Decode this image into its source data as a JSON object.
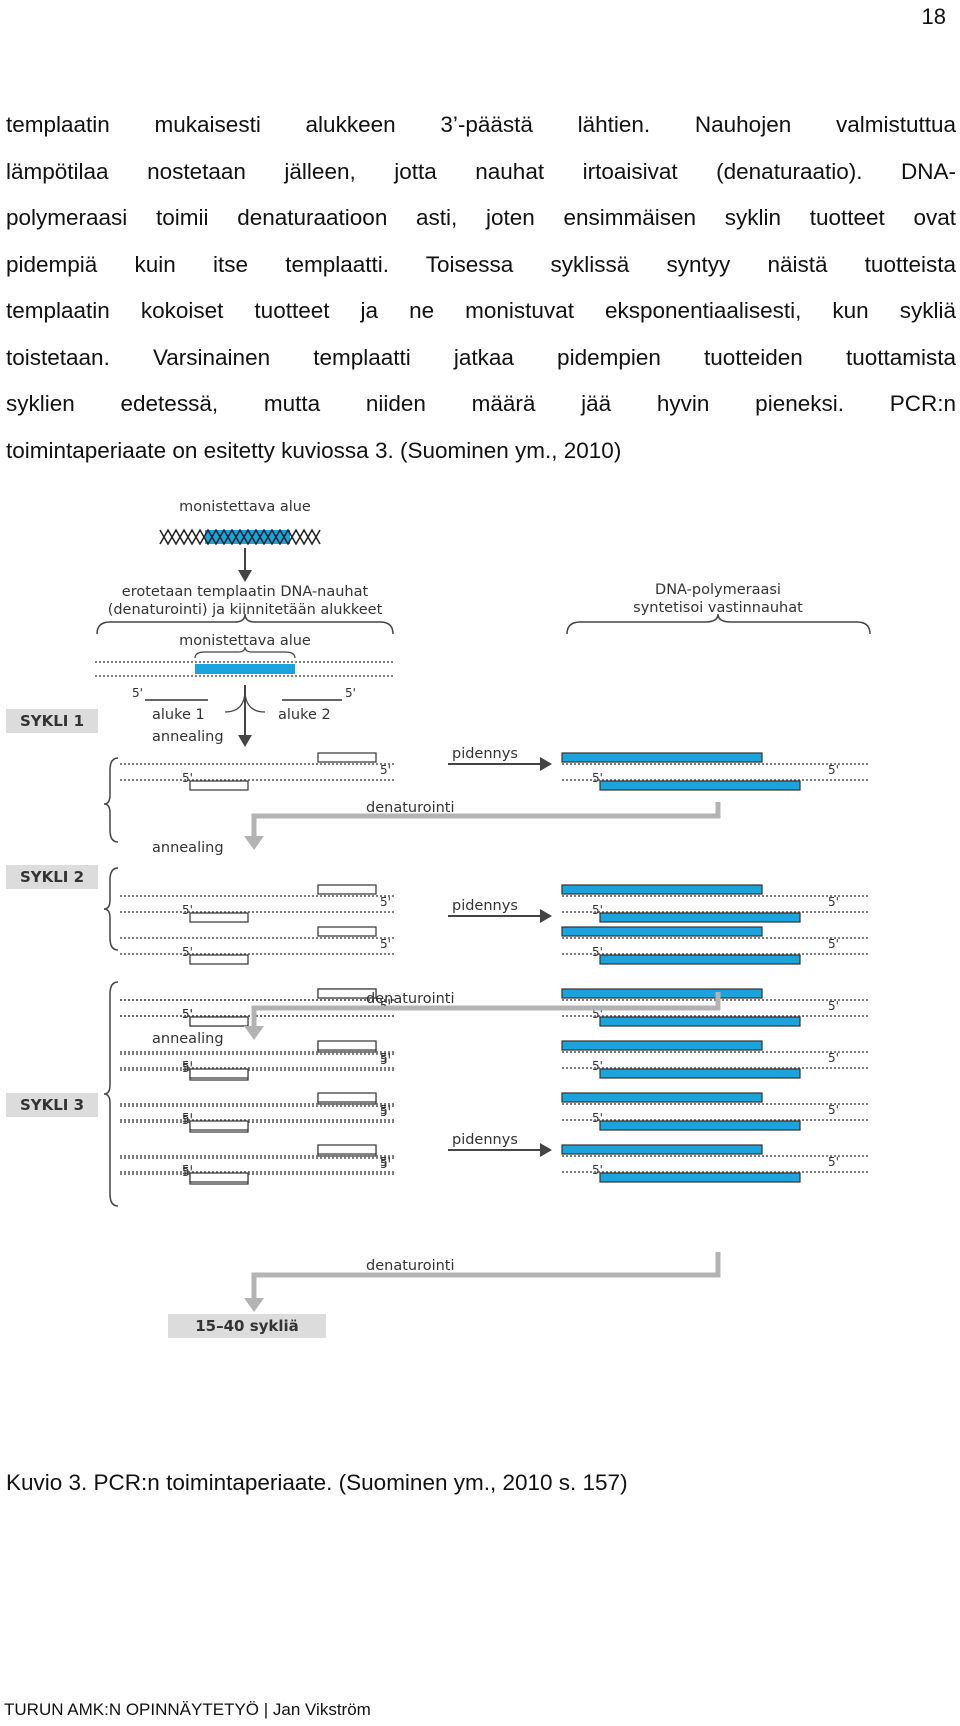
{
  "page_number": "18",
  "body_lines": [
    "templaatin mukaisesti alukkeen 3’-päästä lähtien. Nauhojen valmistuttua",
    "lämpötilaa nostetaan jälleen, jotta nauhat irtoaisivat (denaturaatio). DNA-",
    "polymeraasi toimii denaturaatioon asti, joten ensimmäisen syklin tuotteet ovat",
    "pidempiä kuin itse templaatti. Toisessa syklissä syntyy näistä tuotteista",
    "templaatin kokoiset tuotteet ja ne monistuvat eksponentiaalisesti, kun sykliä",
    "toistetaan. Varsinainen templaatti jatkaa pidempien tuotteiden tuottamista",
    "syklien edetessä, mutta niiden määrä jää hyvin pieneksi. PCR:n",
    "toimintaperiaate on esitetty kuviossa 3. (Suominen ym., 2010)"
  ],
  "figure": {
    "label_target_top": "monistettava alue",
    "label_separate_1": "erotetaan templaatin DNA-nauhat",
    "label_separate_2": "(denaturointi) ja kiinnitetään alukkeet",
    "label_polymerase_1": "DNA-polymeraasi",
    "label_polymerase_2": "syntetisoi vastinnauhat",
    "label_target_mid": "monistettava alue",
    "primer_1": "aluke 1",
    "primer_2": "aluke 2",
    "five_prime": "5'",
    "annealing": "annealing",
    "extension": "pidennys",
    "denaturation": "denaturointi",
    "cycle_1": "SYKLI 1",
    "cycle_2": "SYKLI 2",
    "cycle_3": "SYKLI 3",
    "repeat": "15–40 sykliä",
    "colors": {
      "target": "#1ba3dd",
      "arrow": "#444444",
      "grey_arrow": "#b3b3b3",
      "label_bg": "#dcdcdc"
    }
  },
  "caption": "Kuvio 3. PCR:n toimintaperiaate. (Suominen ym., 2010 s. 157)",
  "footer": "TURUN AMK:N OPINNÄYTETYÖ | Jan Vikström"
}
